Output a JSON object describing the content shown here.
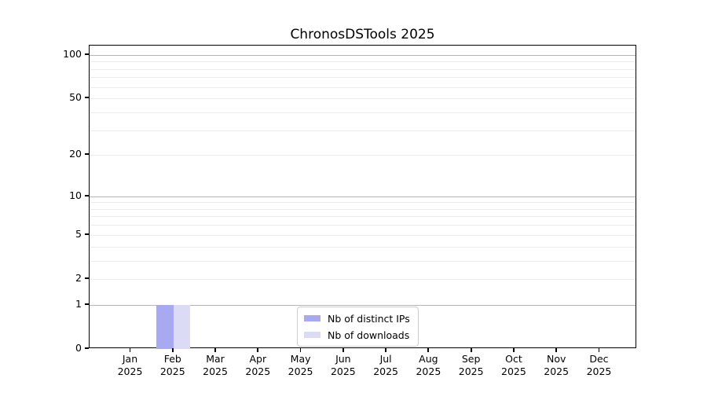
{
  "figure": {
    "title": "ChronosDSTools 2025"
  },
  "chart_data": {
    "type": "bar",
    "title": "ChronosDSTools 2025",
    "categories": [
      "Jan 2025",
      "Feb 2025",
      "Mar 2025",
      "Apr 2025",
      "May 2025",
      "Jun 2025",
      "Jul 2025",
      "Aug 2025",
      "Sep 2025",
      "Oct 2025",
      "Nov 2025",
      "Dec 2025"
    ],
    "x_axis": {
      "months": [
        "Jan",
        "Feb",
        "Mar",
        "Apr",
        "May",
        "Jun",
        "Jul",
        "Aug",
        "Sep",
        "Oct",
        "Nov",
        "Dec"
      ],
      "year": "2025"
    },
    "series": [
      {
        "name": "Nb of distinct IPs",
        "color": "#a9a9f1",
        "values": [
          0,
          1,
          0,
          0,
          0,
          0,
          0,
          0,
          0,
          0,
          0,
          0
        ]
      },
      {
        "name": "Nb of downloads",
        "color": "#dbdbf6",
        "values": [
          0,
          1,
          0,
          0,
          0,
          0,
          0,
          0,
          0,
          0,
          0,
          0
        ]
      }
    ],
    "yscale": "log1p",
    "yticks": [
      0,
      1,
      2,
      5,
      10,
      20,
      50,
      100
    ],
    "major_gridlines": [
      1,
      10,
      100
    ],
    "minor_gridlines": [
      2,
      3,
      4,
      5,
      6,
      7,
      8,
      9,
      20,
      30,
      40,
      50,
      60,
      70,
      80,
      90
    ],
    "ylim": [
      0,
      116
    ],
    "grid": "both",
    "legend_position": "lower center",
    "colors": {
      "axis": "#000000",
      "major_grid": "#b5b5b5",
      "minor_grid": "#ededed",
      "legend_border": "#cccccc",
      "background": "#ffffff"
    }
  }
}
